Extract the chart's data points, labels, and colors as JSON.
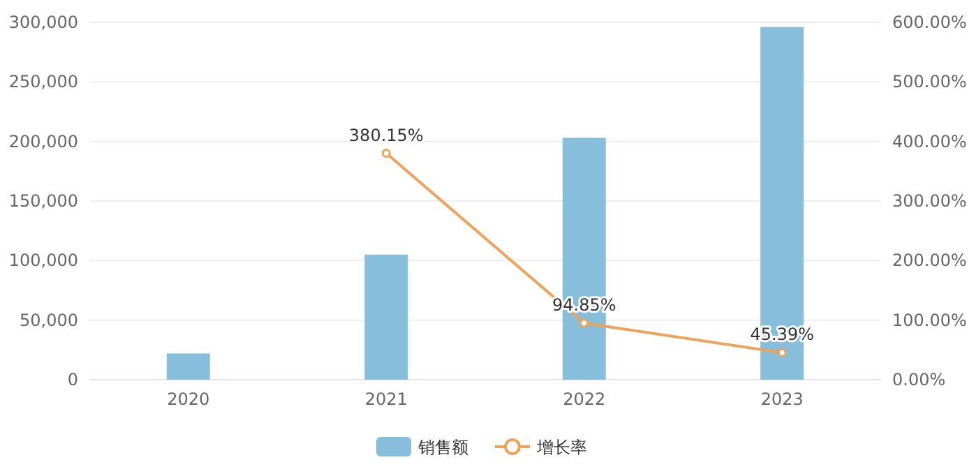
{
  "chart_data": {
    "type": "bar",
    "categories": [
      "2020",
      "2021",
      "2022",
      "2023"
    ],
    "series": [
      {
        "name": "销售额",
        "color": "#86bedc",
        "values": [
          22000,
          105000,
          203000,
          296000
        ]
      },
      {
        "name": "增长率",
        "type": "line",
        "axis": "y2",
        "color": "#eda35a",
        "marker": "circle",
        "values": [
          null,
          380.15,
          94.85,
          45.39
        ],
        "value_labels": [
          null,
          "380.15%",
          "94.85%",
          "45.39%"
        ]
      }
    ],
    "ylim": [
      0,
      300000
    ],
    "yticks": [
      0,
      {
        "value": 50000,
        "label": "50,000"
      },
      {
        "value": 100000,
        "label": "100,000"
      },
      {
        "value": 150000,
        "label": "150,000"
      },
      {
        "value": 200000,
        "label": "200,000"
      },
      {
        "value": 250000,
        "label": "250,000"
      },
      {
        "value": 300000,
        "label": "300,000"
      }
    ],
    "y2lim": [
      0,
      600
    ],
    "y2ticks": [
      {
        "value": 0,
        "label": "0.00%"
      },
      {
        "value": 100,
        "label": "100.00%"
      },
      {
        "value": 200,
        "label": "200.00%"
      },
      {
        "value": 300,
        "label": "300.00%"
      },
      {
        "value": 400,
        "label": "400.00%"
      },
      {
        "value": 500,
        "label": "500.00%"
      },
      {
        "value": 600,
        "label": "600.00%"
      }
    ],
    "grid": "y",
    "legend": "bottom"
  }
}
